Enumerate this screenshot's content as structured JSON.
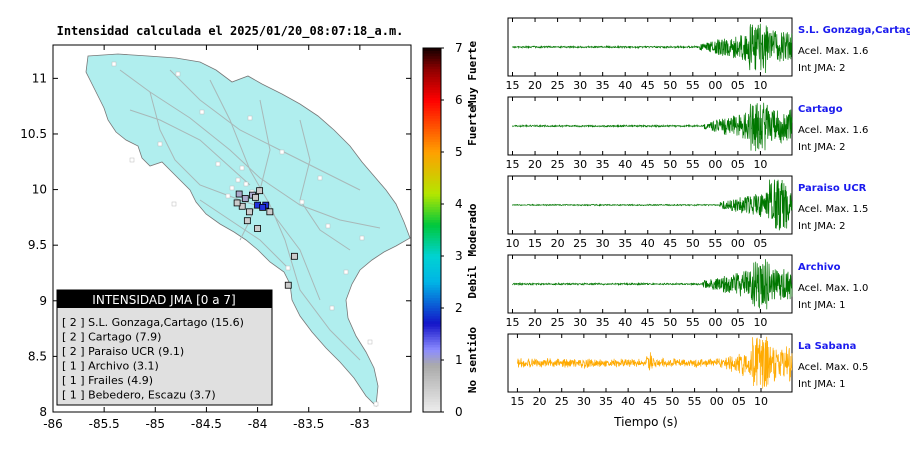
{
  "map": {
    "title": "Intensidad calculada el 2025/01/20_08:07:18_a.m.",
    "xlim": [
      -86,
      -82.5
    ],
    "ylim": [
      8,
      11.3
    ],
    "x_ticks": [
      "-86",
      "-85.5",
      "-85",
      "-84.5",
      "-84",
      "-83.5",
      "-83"
    ],
    "y_ticks": [
      "8",
      "8.5",
      "9",
      "9.5",
      "10",
      "10.5",
      "11"
    ],
    "land_color": "#b0eeee",
    "legend": {
      "title": "INTENSIDAD JMA [0 a 7]",
      "items": [
        {
          "text": "[ 2 ]  S.L. Gonzaga,Cartago (15.6)"
        },
        {
          "text": "[ 2 ]  Cartago (7.9)"
        },
        {
          "text": "[ 2 ]  Paraiso UCR (9.1)"
        },
        {
          "text": "[ 1 ]  Archivo (3.1)"
        },
        {
          "text": "[ 1 ]  Frailes (4.9)"
        },
        {
          "text": "[ 1 ]  Bebedero, Escazu (3.7)"
        }
      ]
    },
    "stations": [
      {
        "lon": -84.0,
        "lat": 9.86,
        "intensity": 2
      },
      {
        "lon": -83.92,
        "lat": 9.86,
        "intensity": 2
      },
      {
        "lon": -83.95,
        "lat": 9.84,
        "intensity": 2
      },
      {
        "lon": -84.05,
        "lat": 9.95,
        "intensity": 1
      },
      {
        "lon": -84.18,
        "lat": 9.96,
        "intensity": 1
      },
      {
        "lon": -84.12,
        "lat": 9.92,
        "intensity": 1
      },
      {
        "lon": -84.15,
        "lat": 9.85,
        "intensity": 0
      },
      {
        "lon": -84.02,
        "lat": 9.93,
        "intensity": 0
      },
      {
        "lon": -83.98,
        "lat": 9.99,
        "intensity": 0
      },
      {
        "lon": -84.1,
        "lat": 9.72,
        "intensity": 0
      },
      {
        "lon": -84.0,
        "lat": 9.65,
        "intensity": 0
      },
      {
        "lon": -84.08,
        "lat": 9.8,
        "intensity": 0
      },
      {
        "lon": -83.88,
        "lat": 9.8,
        "intensity": 0
      },
      {
        "lon": -84.2,
        "lat": 9.88,
        "intensity": 0
      },
      {
        "lon": -83.64,
        "lat": 9.4,
        "intensity": 0
      },
      {
        "lon": -83.7,
        "lat": 9.14,
        "intensity": 0
      }
    ]
  },
  "colorbar": {
    "ticks": [
      "0",
      "1",
      "2",
      "3",
      "4",
      "5",
      "6",
      "7"
    ],
    "labels": [
      "No sentido",
      "Debil",
      "Moderado",
      "Fuerte",
      "Muy Fuerte"
    ]
  },
  "chart_data": {
    "type": "line",
    "xlabel": "Tiempo (s)",
    "series": [
      {
        "name": "S.L. Gonzaga,Cartago",
        "accel_label": "Acel. Max. 1.6",
        "int_label": "Int JMA: 2",
        "color": "#007700",
        "arrival": 56.5,
        "peak": 69.5,
        "base": 0.015,
        "noise": 0.02,
        "ticks": [
          "15",
          "20",
          "25",
          "30",
          "35",
          "40",
          "45",
          "50",
          "55",
          "00",
          "05",
          "10"
        ],
        "tick_start": 15
      },
      {
        "name": "Cartago",
        "accel_label": "Acel. Max. 1.6",
        "int_label": "Int JMA: 2",
        "color": "#007700",
        "arrival": 57.5,
        "peak": 69.5,
        "base": 0.015,
        "noise": 0.02,
        "ticks": [
          "15",
          "20",
          "25",
          "30",
          "35",
          "40",
          "45",
          "50",
          "55",
          "00",
          "05",
          "10"
        ],
        "tick_start": 15
      },
      {
        "name": "Paraiso UCR",
        "accel_label": "Acel. Max. 1.5",
        "int_label": "Int JMA: 2",
        "color": "#007700",
        "arrival": 56.0,
        "peak": 69.0,
        "base": 0.01,
        "noise": 0.015,
        "ticks": [
          "10",
          "15",
          "20",
          "25",
          "30",
          "35",
          "40",
          "45",
          "50",
          "55",
          "00",
          "05"
        ],
        "tick_start": 10
      },
      {
        "name": "Archivo",
        "accel_label": "Acel. Max. 1.0",
        "int_label": "Int JMA: 1",
        "color": "#007700",
        "arrival": 57.0,
        "peak": 70.0,
        "base": 0.015,
        "noise": 0.02,
        "ticks": [
          "15",
          "20",
          "25",
          "30",
          "35",
          "40",
          "45",
          "50",
          "55",
          "00",
          "05",
          "10"
        ],
        "tick_start": 15
      },
      {
        "name": "La Sabana",
        "accel_label": "Acel. Max. 0.5",
        "int_label": "Int JMA: 1",
        "color": "#ffaa00",
        "arrival": 62.0,
        "peak": 70.0,
        "base": 0.06,
        "noise": 0.12,
        "ticks": [
          "15",
          "20",
          "25",
          "30",
          "35",
          "40",
          "45",
          "50",
          "55",
          "00",
          "05",
          "10"
        ],
        "tick_start": 15,
        "xpad": 5
      }
    ]
  }
}
